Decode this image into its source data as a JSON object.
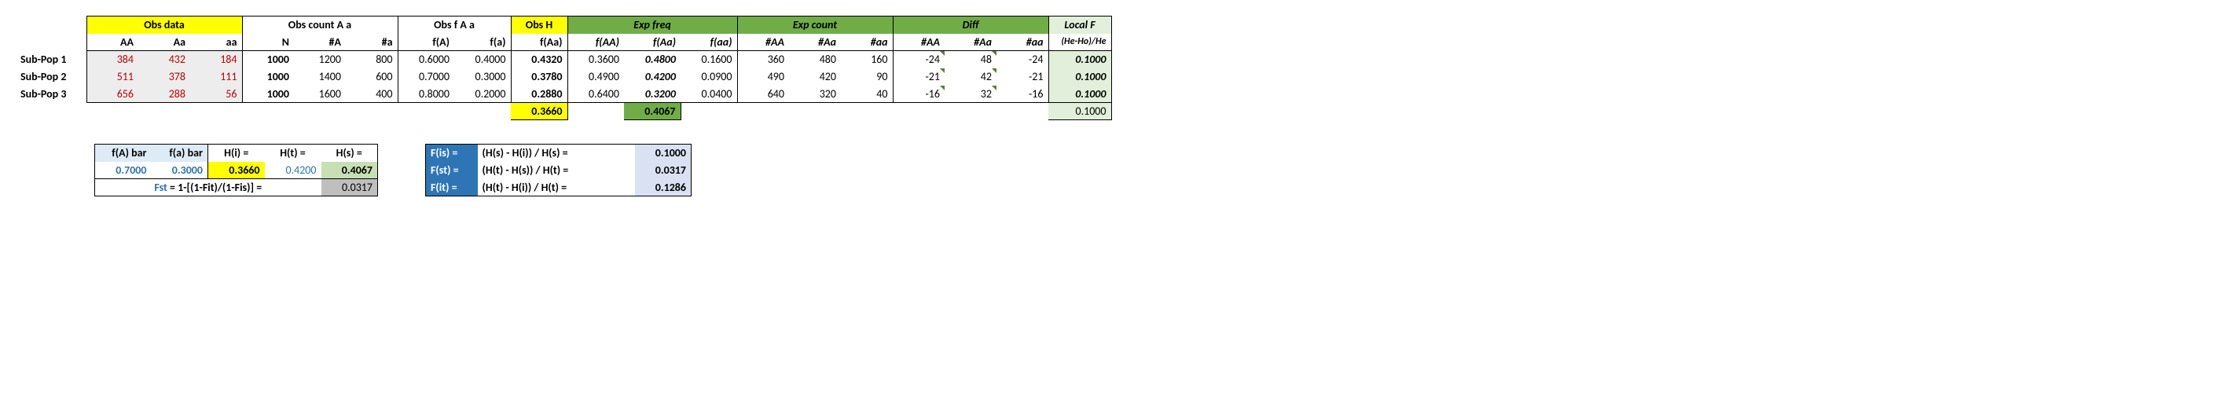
{
  "main": {
    "headers": {
      "obs_data": "Obs data",
      "obs_count": "Obs count A a",
      "obs_f": "Obs f A a",
      "obs_h": "Obs H",
      "exp_freq": "Exp freq",
      "exp_count": "Exp count",
      "diff": "Diff",
      "local_f": "Local F"
    },
    "subheaders": {
      "AA": "AA",
      "Aa": "Aa",
      "aa": "aa",
      "N": "N",
      "numA": "#A",
      "numa": "#a",
      "fA": "f(A)",
      "fa": "f(a)",
      "fAa": "f(Aa)",
      "fAA_e": "f(AA)",
      "fAa_e": "f(Aa)",
      "faa_e": "f(aa)",
      "cAA": "#AA",
      "cAa": "#Aa",
      "caa": "#aa",
      "dAA": "#AA",
      "dAa": "#Aa",
      "daa": "#aa",
      "localF": "(He-Ho)/He"
    },
    "rows": [
      {
        "label": "Sub-Pop 1",
        "AA": "384",
        "Aa": "432",
        "aa": "184",
        "N": "1000",
        "numA": "1200",
        "numa": "800",
        "fA": "0.6000",
        "fa": "0.4000",
        "fAa": "0.4320",
        "fAA_e": "0.3600",
        "fAa_e": "0.4800",
        "faa_e": "0.1600",
        "cAA": "360",
        "cAa": "480",
        "caa": "160",
        "dAA": "-24",
        "dAa": "48",
        "daa": "-24",
        "localF": "0.1000"
      },
      {
        "label": "Sub-Pop 2",
        "AA": "511",
        "Aa": "378",
        "aa": "111",
        "N": "1000",
        "numA": "1400",
        "numa": "600",
        "fA": "0.7000",
        "fa": "0.3000",
        "fAa": "0.3780",
        "fAA_e": "0.4900",
        "fAa_e": "0.4200",
        "faa_e": "0.0900",
        "cAA": "490",
        "cAa": "420",
        "caa": "90",
        "dAA": "-21",
        "dAa": "42",
        "daa": "-21",
        "localF": "0.1000"
      },
      {
        "label": "Sub-Pop 3",
        "AA": "656",
        "Aa": "288",
        "aa": "56",
        "N": "1000",
        "numA": "1600",
        "numa": "400",
        "fA": "0.8000",
        "fa": "0.2000",
        "fAa": "0.2880",
        "fAA_e": "0.6400",
        "fAa_e": "0.3200",
        "faa_e": "0.0400",
        "cAA": "640",
        "cAa": "320",
        "caa": "40",
        "dAA": "-16",
        "dAa": "32",
        "daa": "-16",
        "localF": "0.1000"
      }
    ],
    "totals": {
      "fAa_sum": "0.3660",
      "fAa_e_sum": "0.4067",
      "localF_sum": "0.1000"
    }
  },
  "panel_left": {
    "h_fA": "f(A) bar",
    "h_fa": "f(a) bar",
    "h_Hi": "H(i) =",
    "h_Ht": "H(t) =",
    "h_Hs": "H(s) =",
    "v_fA": "0.7000",
    "v_fa": "0.3000",
    "v_Hi": "0.3660",
    "v_Ht": "0.4200",
    "v_Hs": "0.4067",
    "fst_label": " = 1-[(1-Fit)/(1-Fis)] =",
    "fst_prefix": "Fst",
    "fst_val": "0.0317"
  },
  "panel_right": {
    "fis_label": "F(is) =",
    "fis_formula": "(H(s) - H(i)) / H(s) =",
    "fis_val": "0.1000",
    "fst_label": "F(st) =",
    "fst_formula": "(H(t) - H(s)) / H(t) =",
    "fst_val": "0.0317",
    "fit_label": "F(it) =",
    "fit_formula": "(H(t) - H(i)) / H(t) =",
    "fit_val": "0.1286"
  },
  "widths": {
    "rowlabel": 90,
    "narrow": 60,
    "med": 72,
    "wide": 80
  }
}
